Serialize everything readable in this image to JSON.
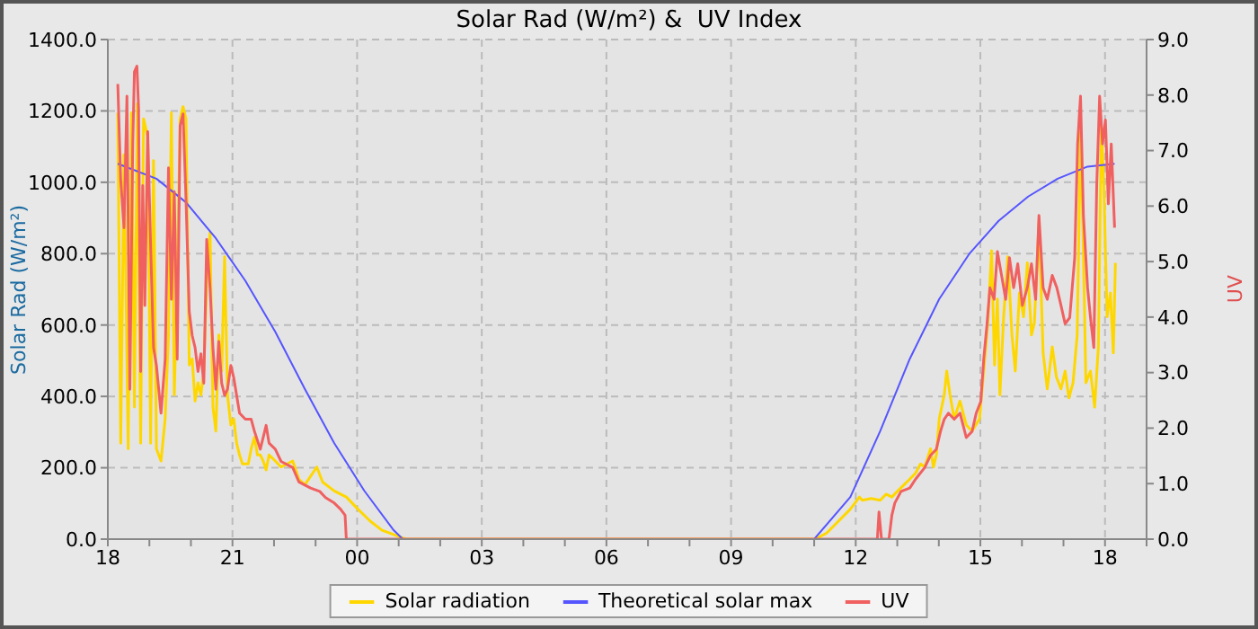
{
  "chart_data": {
    "type": "line",
    "title": "Solar Rad (W/m²) &  UV Index",
    "ylabel": "Solar Rad (W/m²)",
    "y2label": "UV",
    "xlim": [
      18,
      43
    ],
    "xticks": [
      {
        "value": 18,
        "label": "18"
      },
      {
        "value": 19,
        "label": null
      },
      {
        "value": 20,
        "label": null
      },
      {
        "value": 21,
        "label": "21"
      },
      {
        "value": 22,
        "label": null
      },
      {
        "value": 23,
        "label": null
      },
      {
        "value": 24,
        "label": "00"
      },
      {
        "value": 25,
        "label": null
      },
      {
        "value": 26,
        "label": null
      },
      {
        "value": 27,
        "label": "03"
      },
      {
        "value": 28,
        "label": null
      },
      {
        "value": 29,
        "label": null
      },
      {
        "value": 30,
        "label": "06"
      },
      {
        "value": 31,
        "label": null
      },
      {
        "value": 32,
        "label": null
      },
      {
        "value": 33,
        "label": "09"
      },
      {
        "value": 34,
        "label": null
      },
      {
        "value": 35,
        "label": null
      },
      {
        "value": 36,
        "label": "12"
      },
      {
        "value": 37,
        "label": null
      },
      {
        "value": 38,
        "label": null
      },
      {
        "value": 39,
        "label": "15"
      },
      {
        "value": 40,
        "label": null
      },
      {
        "value": 41,
        "label": null
      },
      {
        "value": 42,
        "label": "18"
      },
      {
        "value": 43,
        "label": null
      }
    ],
    "ylim": [
      0,
      1400
    ],
    "yticks": [
      {
        "value": 0,
        "label": "0.0"
      },
      {
        "value": 200,
        "label": "200.0"
      },
      {
        "value": 400,
        "label": "400.0"
      },
      {
        "value": 600,
        "label": "600.0"
      },
      {
        "value": 800,
        "label": "800.0"
      },
      {
        "value": 1000,
        "label": "1000.0"
      },
      {
        "value": 1200,
        "label": "1200.0"
      },
      {
        "value": 1400,
        "label": "1400.0"
      }
    ],
    "y2lim": [
      0,
      9
    ],
    "y2ticks": [
      {
        "value": 0,
        "label": "0.0"
      },
      {
        "value": 1,
        "label": "1.0"
      },
      {
        "value": 2,
        "label": "2.0"
      },
      {
        "value": 3,
        "label": "3.0"
      },
      {
        "value": 4,
        "label": "4.0"
      },
      {
        "value": 5,
        "label": "5.0"
      },
      {
        "value": 6,
        "label": "6.0"
      },
      {
        "value": 7,
        "label": "7.0"
      },
      {
        "value": 8,
        "label": "8.0"
      },
      {
        "value": 9,
        "label": "9.0"
      }
    ],
    "grid": true,
    "legend": "bottom",
    "series": [
      {
        "name": "Solar radiation",
        "color": "#ffd700",
        "x": [
          18.24,
          18.31,
          18.39,
          18.49,
          18.57,
          18.64,
          18.71,
          18.79,
          18.86,
          18.96,
          19.03,
          19.1,
          19.17,
          19.28,
          19.38,
          19.46,
          19.53,
          19.6,
          19.67,
          19.74,
          19.81,
          19.88,
          19.96,
          20.03,
          20.1,
          20.17,
          20.24,
          20.31,
          20.38,
          20.46,
          20.53,
          20.6,
          20.67,
          20.74,
          20.81,
          20.88,
          20.96,
          21.03,
          21.1,
          21.17,
          21.24,
          21.38,
          21.45,
          21.53,
          21.6,
          21.67,
          21.74,
          21.81,
          21.88,
          22.03,
          22.17,
          22.45,
          22.6,
          22.74,
          23.03,
          23.17,
          23.45,
          23.74,
          24.02,
          24.31,
          24.6,
          24.88,
          25.17,
          35.02,
          35.3,
          35.59,
          35.87,
          36.09,
          36.16,
          36.37,
          36.59,
          36.73,
          36.87,
          37.01,
          37.16,
          37.3,
          37.44,
          37.56,
          37.66,
          37.8,
          37.87,
          37.94,
          38.01,
          38.13,
          38.19,
          38.27,
          38.37,
          38.51,
          38.66,
          38.8,
          38.98,
          39.08,
          39.18,
          39.27,
          39.34,
          39.41,
          39.47,
          39.56,
          39.66,
          39.76,
          39.84,
          39.94,
          40.04,
          40.13,
          40.23,
          40.3,
          40.41,
          40.51,
          40.61,
          40.73,
          40.83,
          40.94,
          41.04,
          41.13,
          41.23,
          41.33,
          41.41,
          41.47,
          41.54,
          41.65,
          41.75,
          41.84,
          41.91,
          41.97,
          42.05,
          42.13,
          42.2,
          42.25
        ],
        "values": [
          1195,
          269,
          1077,
          253,
          1195,
          370,
          1220,
          269,
          1178,
          1128,
          269,
          1061,
          253,
          219,
          337,
          572,
          1195,
          404,
          741,
          1178,
          1212,
          1178,
          488,
          505,
          387,
          438,
          404,
          471,
          724,
          859,
          370,
          303,
          572,
          471,
          791,
          404,
          320,
          337,
          269,
          236,
          211,
          211,
          253,
          286,
          236,
          236,
          219,
          194,
          236,
          219,
          202,
          219,
          168,
          152,
          202,
          160,
          135,
          118,
          84,
          51,
          25,
          13,
          0,
          0,
          17,
          51,
          84,
          118,
          109,
          114,
          109,
          126,
          118,
          135,
          152,
          168,
          185,
          211,
          202,
          253,
          202,
          236,
          337,
          404,
          471,
          404,
          337,
          387,
          320,
          303,
          337,
          471,
          606,
          808,
          488,
          673,
          404,
          623,
          791,
          572,
          471,
          690,
          623,
          774,
          572,
          606,
          892,
          522,
          421,
          539,
          454,
          421,
          471,
          396,
          438,
          572,
          1145,
          859,
          438,
          471,
          370,
          539,
          1162,
          993,
          623,
          690,
          522,
          774
        ]
      },
      {
        "name": "Theoretical solar max",
        "color": "#5555ff",
        "x": [
          18.24,
          19.17,
          19.88,
          20.6,
          21.31,
          22.03,
          22.74,
          23.45,
          24.17,
          24.88,
          25.1,
          35.0,
          35.87,
          36.59,
          37.3,
          38.01,
          38.73,
          39.44,
          40.15,
          40.86,
          41.58,
          42.23
        ],
        "values": [
          1052,
          1010,
          944,
          843,
          724,
          581,
          421,
          269,
          136,
          25,
          0,
          0,
          118,
          303,
          505,
          673,
          799,
          892,
          960,
          1010,
          1044,
          1052
        ]
      },
      {
        "name": "UV",
        "color": "#f06060",
        "axis": "y2",
        "x": [
          18.24,
          18.31,
          18.39,
          18.46,
          18.53,
          18.6,
          18.64,
          18.7,
          18.74,
          18.79,
          18.84,
          18.89,
          18.96,
          19.03,
          19.1,
          19.17,
          19.28,
          19.38,
          19.46,
          19.53,
          19.6,
          19.67,
          19.74,
          19.81,
          19.88,
          19.96,
          20.03,
          20.1,
          20.17,
          20.24,
          20.31,
          20.38,
          20.46,
          20.53,
          20.6,
          20.67,
          20.74,
          20.81,
          20.88,
          20.96,
          21.03,
          21.1,
          21.17,
          21.31,
          21.45,
          21.53,
          21.67,
          21.81,
          21.88,
          22.03,
          22.17,
          22.45,
          22.6,
          22.88,
          23.1,
          23.24,
          23.45,
          23.6,
          23.71,
          23.74,
          36.52,
          36.56,
          36.62,
          36.8,
          36.87,
          36.94,
          37.09,
          37.3,
          37.44,
          37.66,
          37.8,
          37.94,
          38.04,
          38.13,
          38.23,
          38.37,
          38.51,
          38.66,
          38.8,
          38.9,
          39.01,
          39.08,
          39.16,
          39.23,
          39.33,
          39.41,
          39.51,
          39.61,
          39.7,
          39.8,
          39.9,
          40.01,
          40.13,
          40.23,
          40.33,
          40.41,
          40.51,
          40.61,
          40.73,
          40.84,
          40.94,
          41.04,
          41.15,
          41.27,
          41.34,
          41.41,
          41.48,
          41.58,
          41.65,
          41.73,
          41.8,
          41.87,
          41.94,
          42.01,
          42.08,
          42.15,
          42.23
        ],
        "values": [
          8.2,
          6.47,
          5.61,
          7.98,
          2.7,
          7.12,
          8.42,
          8.52,
          7.77,
          3.02,
          6.37,
          4.21,
          7.34,
          5.29,
          3.45,
          3.13,
          2.27,
          3.24,
          6.69,
          4.32,
          6.26,
          3.24,
          7.45,
          7.66,
          6.15,
          4.1,
          3.67,
          3.45,
          3.02,
          3.34,
          2.81,
          5.4,
          4.53,
          3.45,
          2.7,
          3.56,
          2.81,
          2.59,
          2.7,
          3.13,
          2.91,
          2.59,
          2.27,
          2.16,
          2.16,
          1.94,
          1.62,
          2.05,
          1.73,
          1.62,
          1.4,
          1.29,
          1.03,
          0.92,
          0.86,
          0.75,
          0.65,
          0.54,
          0.43,
          0,
          0,
          0.49,
          0,
          0,
          0.43,
          0.65,
          0.86,
          0.92,
          1.08,
          1.29,
          1.51,
          1.62,
          1.94,
          2.16,
          2.27,
          2.16,
          2.27,
          1.83,
          1.94,
          2.27,
          2.48,
          3.24,
          3.88,
          4.53,
          4.32,
          5.18,
          4.75,
          4.32,
          5.07,
          4.53,
          4.96,
          4.21,
          4.53,
          4.96,
          4.32,
          5.83,
          4.53,
          4.32,
          4.75,
          4.53,
          4.21,
          3.88,
          3.99,
          5.07,
          7.12,
          7.98,
          5.83,
          4.53,
          3.99,
          3.45,
          6.37,
          7.98,
          7.12,
          7.55,
          6.04,
          7.12,
          5.61
        ]
      }
    ]
  }
}
